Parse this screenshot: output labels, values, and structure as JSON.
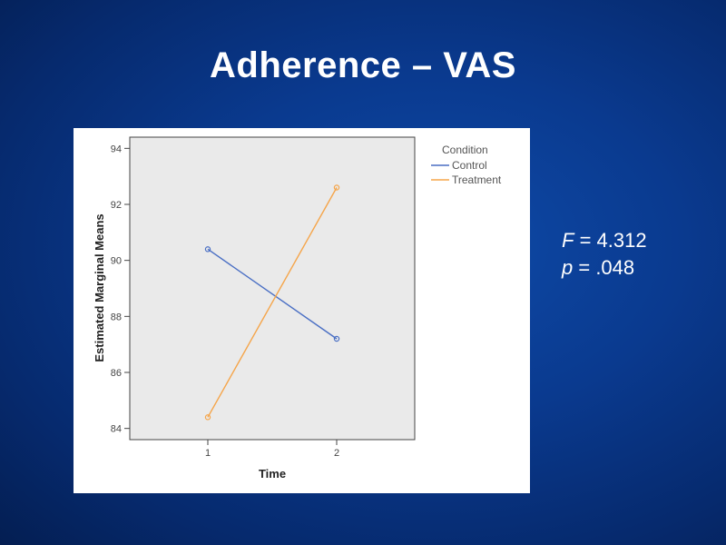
{
  "slide": {
    "title": "Adherence – VAS"
  },
  "stats": {
    "f_symbol": "F",
    "f_rest": " = 4.312",
    "p_symbol": "p",
    "p_rest": " = .048"
  },
  "colors": {
    "background": "#0a3a8f",
    "control": "#4a6fc4",
    "treatment": "#f5a54a",
    "plot_area": "#eaeaea"
  },
  "chart_data": {
    "type": "line",
    "title": "",
    "xlabel": "Time",
    "ylabel": "Estimated Marginal Means",
    "x": [
      "1",
      "2"
    ],
    "ylim": [
      83.6,
      94.4
    ],
    "yticks": [
      "84",
      "86",
      "88",
      "90",
      "92",
      "94"
    ],
    "legend_title": "Condition",
    "legend_position": "top-right",
    "grid": false,
    "series": [
      {
        "name": "Control",
        "values": [
          90.4,
          87.2
        ],
        "color": "#4a6fc4"
      },
      {
        "name": "Treatment",
        "values": [
          84.4,
          92.6
        ],
        "color": "#f5a54a"
      }
    ]
  }
}
